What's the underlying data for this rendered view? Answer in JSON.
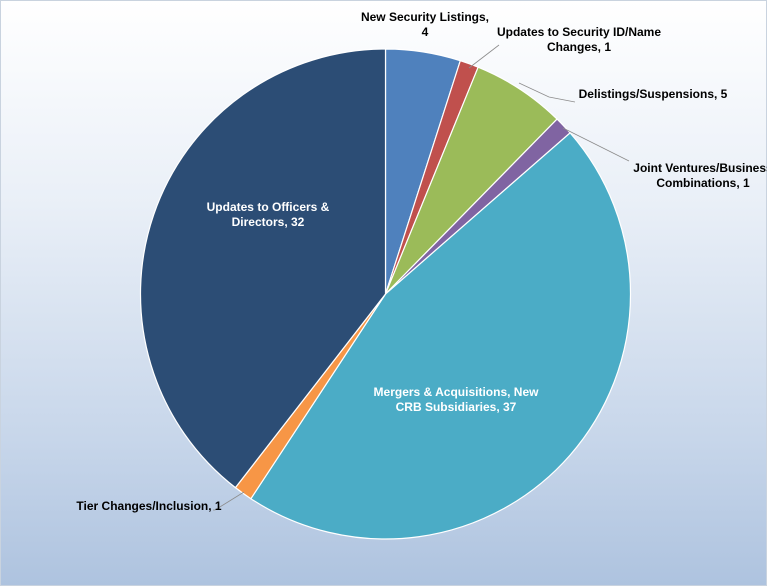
{
  "chart_data": {
    "type": "pie",
    "title": "",
    "start_angle_deg": 0,
    "direction": "clockwise",
    "legend": "none",
    "slices": [
      {
        "name": "New Security Listings",
        "value": 4,
        "color": "#4f81bd",
        "label_lines": [
          "New Security Listings,",
          "4"
        ]
      },
      {
        "name": "Updates to Security ID/Name Changes",
        "value": 1,
        "color": "#c0504d",
        "label_lines": [
          "Updates to Security ID/Name",
          "Changes, 1"
        ]
      },
      {
        "name": "Delistings/Suspensions",
        "value": 5,
        "color": "#9bbb59",
        "label_lines": [
          "Delistings/Suspensions, 5"
        ]
      },
      {
        "name": "Joint Ventures/Business Combinations",
        "value": 1,
        "color": "#8064a2",
        "label_lines": [
          "Joint Ventures/Business",
          "Combinations, 1"
        ]
      },
      {
        "name": "Mergers & Acquisitions, New CRB Subsidiaries",
        "value": 37,
        "color": "#4bacc6",
        "label_lines": [
          "Mergers & Acquisitions, New",
          "CRB Subsidiaries, 37"
        ]
      },
      {
        "name": "Tier Changes/Inclusion",
        "value": 1,
        "color": "#f79646",
        "label_lines": [
          "Tier Changes/Inclusion, 1"
        ]
      },
      {
        "name": "Updates to Officers & Directors",
        "value": 32,
        "color": "#2c4d75",
        "label_lines": [
          "Updates to Officers &",
          "Directors, 32"
        ]
      }
    ]
  }
}
